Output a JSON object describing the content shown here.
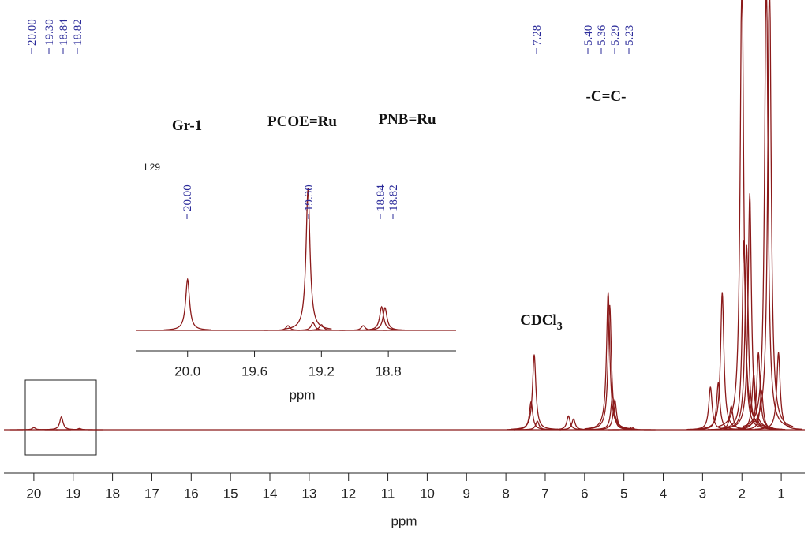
{
  "chart_data": [
    {
      "type": "nmr",
      "x_label": "ppm",
      "xlim": [
        20.76,
        0.4
      ],
      "xticks": [
        20,
        19,
        18,
        17,
        16,
        15,
        14,
        13,
        12,
        11,
        10,
        9,
        8,
        7,
        6,
        5,
        4,
        3,
        2,
        1
      ],
      "ylim": [
        0,
        100
      ],
      "color": "#8b1a1a",
      "peaks": {
        "x": [
          20.0,
          19.3,
          18.84,
          7.36,
          7.28,
          7.2,
          6.41,
          6.28,
          5.4,
          5.36,
          5.29,
          5.23,
          4.8,
          2.8,
          2.6,
          2.5,
          2.27,
          2.0,
          1.95,
          1.88,
          1.8,
          1.7,
          1.58,
          1.5,
          1.38,
          1.3,
          1.07
        ],
        "height": [
          0.5,
          3,
          0.3,
          6.5,
          17.5,
          2,
          3.2,
          2.5,
          32,
          29,
          8,
          7,
          0.6,
          10,
          11,
          32,
          5.5,
          110,
          44,
          43,
          55,
          13,
          18,
          9,
          110,
          110,
          18
        ]
      },
      "peak_labels": [
        {
          "value": 20.0,
          "label": "20.00"
        },
        {
          "value": 19.3,
          "label": "19.30"
        },
        {
          "value": 18.84,
          "label": "18.84"
        },
        {
          "value": 18.82,
          "label": "18.82"
        },
        {
          "value": 7.28,
          "label": "7.28"
        },
        {
          "value": 5.4,
          "label": "5.40"
        },
        {
          "value": 5.36,
          "label": "5.36"
        },
        {
          "value": 5.29,
          "label": "5.29"
        },
        {
          "value": 5.23,
          "label": "5.23"
        }
      ],
      "annotations": [
        "-C=C-",
        {
          "text": "CDCl",
          "subscript": "3"
        }
      ]
    },
    {
      "type": "nmr",
      "x_label": "ppm",
      "label": "L29",
      "xlim": [
        20.31,
        18.395
      ],
      "xticks": [
        {
          "value": 20.0,
          "label": "20.0"
        },
        {
          "value": 19.6,
          "label": "19.6"
        },
        {
          "value": 19.2,
          "label": "19.2"
        },
        {
          "value": 18.8,
          "label": "18.8"
        }
      ],
      "ylim": [
        0,
        100
      ],
      "color": "#8b1a1a",
      "peaks": {
        "x": [
          20.0,
          19.4,
          19.28,
          19.25,
          19.2,
          18.95,
          18.84,
          18.82
        ],
        "height": [
          27,
          2.5,
          75,
          4,
          3,
          2.5,
          12.5,
          12
        ]
      },
      "peak_labels": [
        {
          "value": 20.0,
          "label": "20.00"
        },
        {
          "value": 19.3,
          "label": "19.30"
        },
        {
          "value": 18.84,
          "label": "18.84"
        },
        {
          "value": 18.82,
          "label": "18.82"
        }
      ],
      "annotations": [
        "Gr-1",
        "PCOE=Ru",
        "PNB=Ru"
      ]
    }
  ]
}
